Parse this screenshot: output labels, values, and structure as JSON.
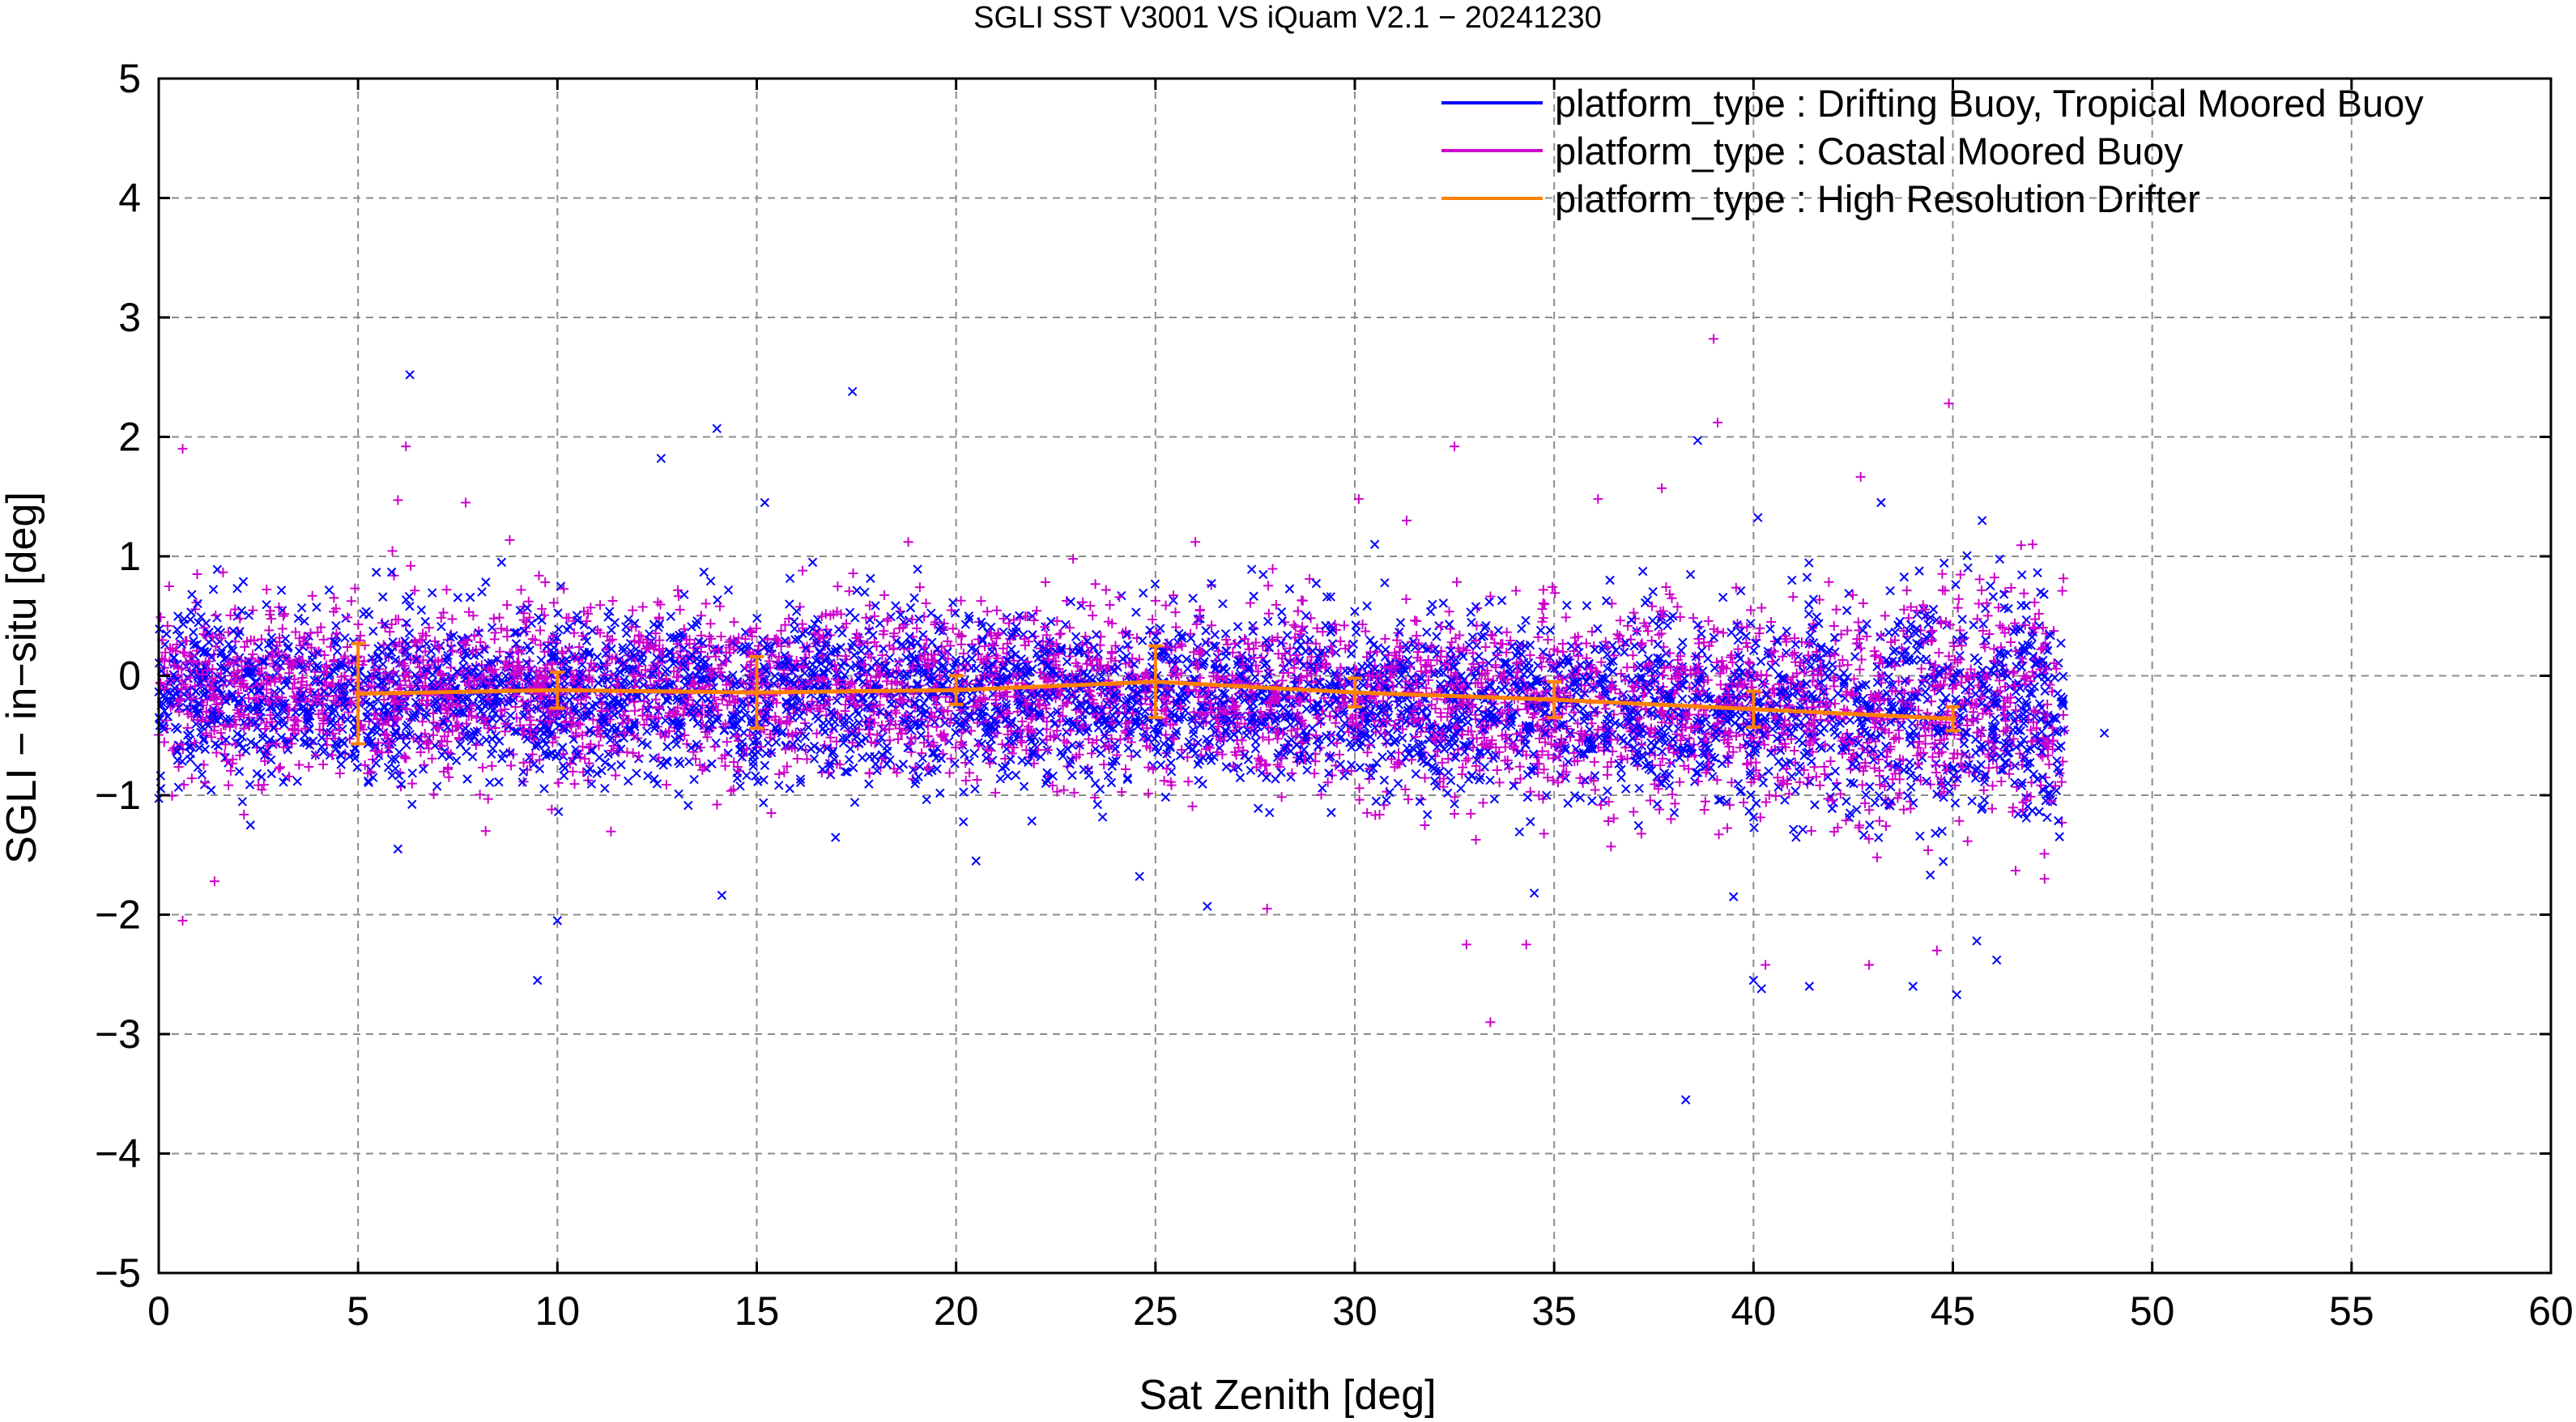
{
  "chart_data": {
    "type": "scatter",
    "title": "SGLI SST V3001 VS iQuam V2.1  − 20241230",
    "xlabel": "Sat Zenith [deg]",
    "ylabel": "SGLI − in−situ [deg]",
    "xlim": [
      0,
      60
    ],
    "ylim": [
      -5,
      5
    ],
    "xticks": [
      0,
      5,
      10,
      15,
      20,
      25,
      30,
      35,
      40,
      45,
      50,
      55,
      60
    ],
    "yticks": [
      -5,
      -4,
      -3,
      -2,
      -1,
      0,
      1,
      2,
      3,
      4,
      5
    ],
    "xtick_labels": [
      "0",
      "5",
      "10",
      "15",
      "20",
      "25",
      "30",
      "35",
      "40",
      "45",
      "50",
      "55",
      "60"
    ],
    "ytick_labels": [
      "−5",
      "−4",
      "−3",
      "−2",
      "−1",
      "0",
      "1",
      "2",
      "3",
      "4",
      "5"
    ],
    "grid": true,
    "legend_position": "top-right",
    "series": [
      {
        "name": "platform_type : Drifting Buoy, Tropical Moored Buoy",
        "color": "#0000ff",
        "marker": "x",
        "x_range": [
          0,
          47.8
        ],
        "bias_trend": [
          {
            "x": 0,
            "y": -0.15
          },
          {
            "x": 10,
            "y": -0.15
          },
          {
            "x": 20,
            "y": -0.17
          },
          {
            "x": 30,
            "y": -0.22
          },
          {
            "x": 40,
            "y": -0.3
          },
          {
            "x": 47.8,
            "y": -0.3
          }
        ],
        "spread": 0.35,
        "points": [
          {
            "x": 6.3,
            "y": 2.52
          },
          {
            "x": 12.6,
            "y": 1.82
          },
          {
            "x": 14.0,
            "y": 2.07
          },
          {
            "x": 17.4,
            "y": 2.38
          },
          {
            "x": 15.2,
            "y": 1.45
          },
          {
            "x": 43.2,
            "y": 1.45
          },
          {
            "x": 38.6,
            "y": 1.97
          },
          {
            "x": 9.5,
            "y": -2.55
          },
          {
            "x": 10.0,
            "y": -2.05
          },
          {
            "x": 38.3,
            "y": -3.55
          },
          {
            "x": 40.0,
            "y": -2.55
          },
          {
            "x": 40.2,
            "y": -2.62
          },
          {
            "x": 41.4,
            "y": -2.6
          },
          {
            "x": 44.0,
            "y": -2.6
          },
          {
            "x": 45.1,
            "y": -2.67
          },
          {
            "x": 45.6,
            "y": -2.22
          },
          {
            "x": 46.1,
            "y": -2.38
          },
          {
            "x": 48.8,
            "y": -0.48
          },
          {
            "x": 26.3,
            "y": -1.93
          },
          {
            "x": 34.5,
            "y": -1.82
          },
          {
            "x": 39.5,
            "y": -1.85
          },
          {
            "x": 24.6,
            "y": -1.68
          },
          {
            "x": 20.5,
            "y": -1.55
          },
          {
            "x": 6.0,
            "y": -1.45
          },
          {
            "x": 2.3,
            "y": -1.25
          },
          {
            "x": 8.6,
            "y": 0.95
          },
          {
            "x": 30.5,
            "y": 1.1
          },
          {
            "x": 36.4,
            "y": 0.8
          },
          {
            "x": 47.2,
            "y": 0.7
          }
        ]
      },
      {
        "name": "platform_type : Coastal Moored Buoy",
        "color": "#cc00cc",
        "marker": "+",
        "x_range": [
          0,
          47.8
        ],
        "bias_trend": [
          {
            "x": 0,
            "y": -0.1
          },
          {
            "x": 10,
            "y": -0.12
          },
          {
            "x": 20,
            "y": -0.12
          },
          {
            "x": 30,
            "y": -0.18
          },
          {
            "x": 40,
            "y": -0.28
          },
          {
            "x": 47.8,
            "y": -0.25
          }
        ],
        "spread": 0.35,
        "points": [
          {
            "x": 0.6,
            "y": 1.9
          },
          {
            "x": 6.2,
            "y": 1.92
          },
          {
            "x": 6.0,
            "y": 1.47
          },
          {
            "x": 7.7,
            "y": 1.45
          },
          {
            "x": 39.0,
            "y": 2.82
          },
          {
            "x": 39.1,
            "y": 2.12
          },
          {
            "x": 44.9,
            "y": 2.28
          },
          {
            "x": 32.5,
            "y": 1.92
          },
          {
            "x": 30.1,
            "y": 1.48
          },
          {
            "x": 31.3,
            "y": 1.3
          },
          {
            "x": 37.7,
            "y": 1.57
          },
          {
            "x": 36.1,
            "y": 1.48
          },
          {
            "x": 0.6,
            "y": -2.05
          },
          {
            "x": 1.4,
            "y": -1.72
          },
          {
            "x": 32.8,
            "y": -2.25
          },
          {
            "x": 33.4,
            "y": -2.9
          },
          {
            "x": 34.3,
            "y": -2.25
          },
          {
            "x": 42.9,
            "y": -2.42
          },
          {
            "x": 44.6,
            "y": -2.3
          },
          {
            "x": 43.1,
            "y": -1.52
          },
          {
            "x": 27.8,
            "y": -1.95
          },
          {
            "x": 40.3,
            "y": -2.42
          },
          {
            "x": 26.0,
            "y": 1.12
          },
          {
            "x": 18.8,
            "y": 1.12
          },
          {
            "x": 47.0,
            "y": 1.1
          },
          {
            "x": 47.3,
            "y": -1.7
          },
          {
            "x": 8.2,
            "y": -1.3
          }
        ]
      },
      {
        "name": "platform_type : High Resolution Drifter",
        "color": "#ff8000",
        "marker": "line_with_errorbars",
        "points": [
          {
            "x": 5,
            "y": -0.15,
            "err": 0.42
          },
          {
            "x": 10,
            "y": -0.12,
            "err": 0.15
          },
          {
            "x": 15,
            "y": -0.14,
            "err": 0.3
          },
          {
            "x": 20,
            "y": -0.12,
            "err": 0.12
          },
          {
            "x": 25,
            "y": -0.05,
            "err": 0.3
          },
          {
            "x": 30,
            "y": -0.14,
            "err": 0.12
          },
          {
            "x": 35,
            "y": -0.2,
            "err": 0.15
          },
          {
            "x": 40,
            "y": -0.28,
            "err": 0.15
          },
          {
            "x": 45,
            "y": -0.36,
            "err": 0.1
          }
        ]
      }
    ]
  }
}
